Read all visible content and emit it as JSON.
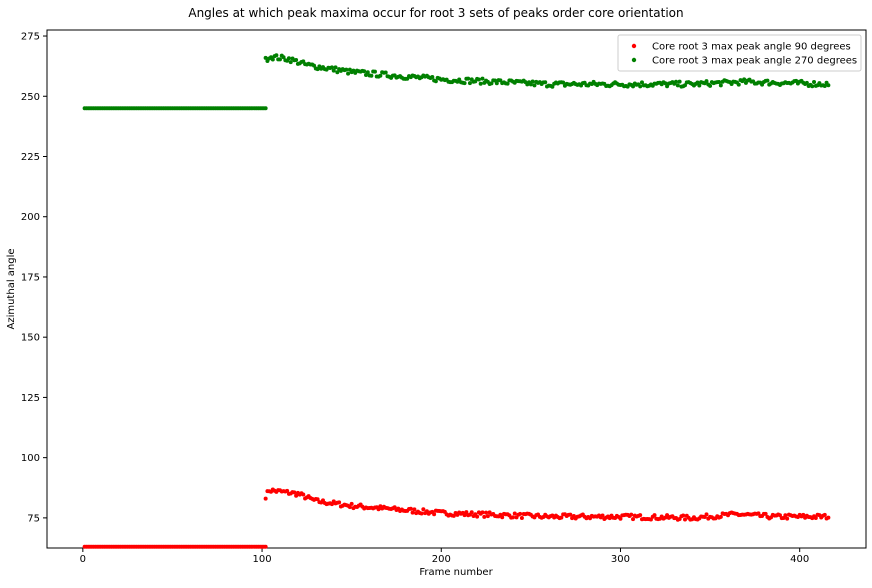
{
  "chart_data": {
    "type": "scatter",
    "title": "Angles at which peak maxima occur for root 3 sets of peaks order core orientation",
    "xlabel": "Frame number",
    "ylabel": "Azimuthal angle",
    "xlim": [
      -20,
      437
    ],
    "ylim": [
      62.5,
      277.5
    ],
    "xticks": [
      0,
      100,
      200,
      300,
      400
    ],
    "yticks": [
      75,
      100,
      125,
      150,
      175,
      200,
      225,
      250,
      275
    ],
    "grid": false,
    "legend_position": "upper right",
    "series": [
      {
        "name": "Core root 3 max peak angle 90 degrees",
        "color": "#ff0000",
        "segments": [
          {
            "x_start": 1,
            "x_end": 102,
            "anchors": [
              [
                1,
                63
              ],
              [
                102,
                63
              ]
            ],
            "noise": 0
          },
          {
            "x_start": 102,
            "x_end": 416,
            "anchors": [
              [
                102,
                84
              ],
              [
                104,
                86.5
              ],
              [
                120,
                85
              ],
              [
                130,
                82
              ],
              [
                150,
                80
              ],
              [
                200,
                77
              ],
              [
                260,
                75.5
              ],
              [
                300,
                75.5
              ],
              [
                340,
                75
              ],
              [
                365,
                76.5
              ],
              [
                385,
                75.5
              ],
              [
                416,
                75.5
              ]
            ],
            "noise": 1.0
          }
        ]
      },
      {
        "name": "Core root 3 max peak angle 270 degrees",
        "color": "#008000",
        "segments": [
          {
            "x_start": 1,
            "x_end": 102,
            "anchors": [
              [
                1,
                245
              ],
              [
                102,
                245
              ]
            ],
            "noise": 0
          },
          {
            "x_start": 102,
            "x_end": 416,
            "anchors": [
              [
                102,
                265
              ],
              [
                104,
                266.5
              ],
              [
                115,
                265.5
              ],
              [
                125,
                263
              ],
              [
                150,
                260
              ],
              [
                200,
                257
              ],
              [
                260,
                255
              ],
              [
                300,
                255
              ],
              [
                340,
                255
              ],
              [
                370,
                256
              ],
              [
                416,
                255
              ]
            ],
            "noise": 1.1
          }
        ]
      }
    ]
  }
}
